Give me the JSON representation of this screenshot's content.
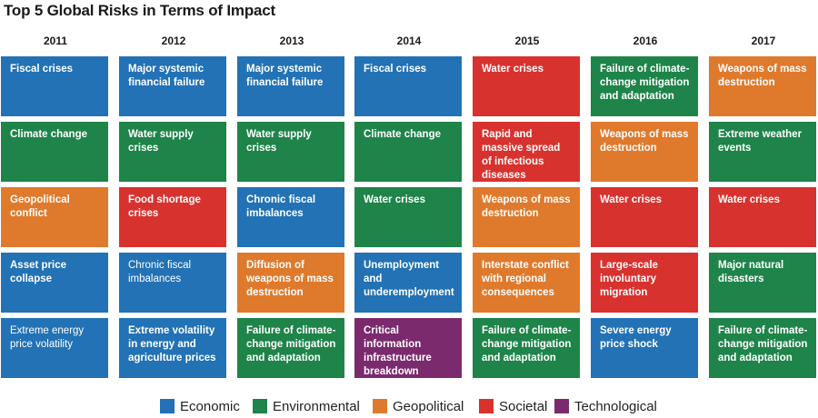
{
  "chart_data": {
    "type": "table",
    "title": "Top 5 Global Risks in Terms of Impact",
    "years": [
      "2011",
      "2012",
      "2013",
      "2014",
      "2015",
      "2016",
      "2017"
    ],
    "categories": [
      {
        "key": "economic",
        "label": "Economic",
        "color": "#2272b5"
      },
      {
        "key": "environmental",
        "label": "Environmental",
        "color": "#1e8449"
      },
      {
        "key": "geopolitical",
        "label": "Geopolitical",
        "color": "#df7a2c"
      },
      {
        "key": "societal",
        "label": "Societal",
        "color": "#d8322e"
      },
      {
        "key": "technological",
        "label": "Technological",
        "color": "#7b2a6e"
      }
    ],
    "risks": [
      [
        {
          "label": "Fiscal crises",
          "category": "economic"
        },
        {
          "label": "Climate change",
          "category": "environmental"
        },
        {
          "label": "Geopolitical conflict",
          "category": "geopolitical"
        },
        {
          "label": "Asset price collapse",
          "category": "economic"
        },
        {
          "label": "Extreme energy price volatility",
          "category": "economic",
          "light": true
        }
      ],
      [
        {
          "label": "Major systemic financial failure",
          "category": "economic"
        },
        {
          "label": "Water supply crises",
          "category": "environmental"
        },
        {
          "label": "Food shortage crises",
          "category": "societal"
        },
        {
          "label": "Chronic fiscal imbalances",
          "category": "economic",
          "light": true
        },
        {
          "label": "Extreme volatility in energy and agriculture prices",
          "category": "economic"
        }
      ],
      [
        {
          "label": "Major systemic financial failure",
          "category": "economic"
        },
        {
          "label": "Water supply crises",
          "category": "environmental"
        },
        {
          "label": "Chronic fiscal imbalances",
          "category": "economic"
        },
        {
          "label": "Diffusion of weapons of mass destruction",
          "category": "geopolitical"
        },
        {
          "label": "Failure of climate-change mitigation and adaptation",
          "category": "environmental"
        }
      ],
      [
        {
          "label": "Fiscal crises",
          "category": "economic"
        },
        {
          "label": "Climate change",
          "category": "environmental"
        },
        {
          "label": "Water crises",
          "category": "environmental"
        },
        {
          "label": "Unemployment and underemployment",
          "category": "economic"
        },
        {
          "label": "Critical information infrastructure breakdown",
          "category": "technological"
        }
      ],
      [
        {
          "label": "Water crises",
          "category": "societal"
        },
        {
          "label": "Rapid and massive spread of infectious diseases",
          "category": "societal"
        },
        {
          "label": "Weapons of mass destruction",
          "category": "geopolitical"
        },
        {
          "label": "Interstate conflict with regional consequences",
          "category": "geopolitical"
        },
        {
          "label": "Failure of climate-change mitigation and adaptation",
          "category": "environmental"
        }
      ],
      [
        {
          "label": "Failure of climate-change mitigation and adaptation",
          "category": "environmental"
        },
        {
          "label": "Weapons of mass destruction",
          "category": "geopolitical"
        },
        {
          "label": "Water crises",
          "category": "societal"
        },
        {
          "label": "Large-scale involuntary migration",
          "category": "societal"
        },
        {
          "label": "Severe energy price shock",
          "category": "economic"
        }
      ],
      [
        {
          "label": "Weapons of mass destruction",
          "category": "geopolitical"
        },
        {
          "label": "Extreme weather events",
          "category": "environmental"
        },
        {
          "label": "Water crises",
          "category": "societal"
        },
        {
          "label": "Major natural disasters",
          "category": "environmental"
        },
        {
          "label": "Failure of climate-change mitigation and adaptation",
          "category": "environmental"
        }
      ]
    ]
  }
}
